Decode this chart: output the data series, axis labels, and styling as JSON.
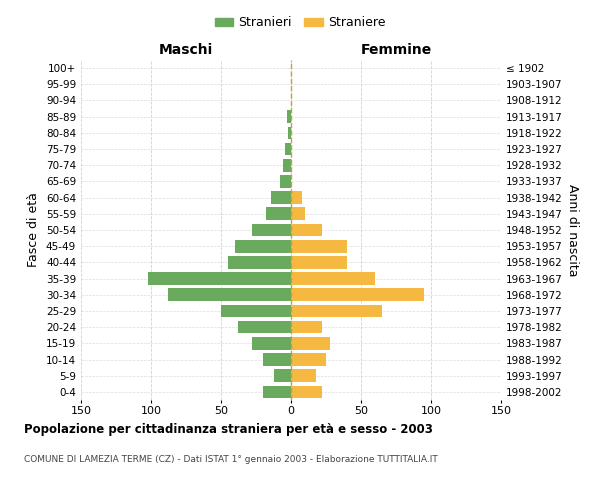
{
  "age_groups": [
    "0-4",
    "5-9",
    "10-14",
    "15-19",
    "20-24",
    "25-29",
    "30-34",
    "35-39",
    "40-44",
    "45-49",
    "50-54",
    "55-59",
    "60-64",
    "65-69",
    "70-74",
    "75-79",
    "80-84",
    "85-89",
    "90-94",
    "95-99",
    "100+"
  ],
  "birth_years": [
    "1998-2002",
    "1993-1997",
    "1988-1992",
    "1983-1987",
    "1978-1982",
    "1973-1977",
    "1968-1972",
    "1963-1967",
    "1958-1962",
    "1953-1957",
    "1948-1952",
    "1943-1947",
    "1938-1942",
    "1933-1937",
    "1928-1932",
    "1923-1927",
    "1918-1922",
    "1913-1917",
    "1908-1912",
    "1903-1907",
    "≤ 1902"
  ],
  "maschi": [
    20,
    12,
    20,
    28,
    38,
    50,
    88,
    102,
    45,
    40,
    28,
    18,
    14,
    8,
    6,
    4,
    2,
    3,
    0,
    0,
    0
  ],
  "femmine": [
    22,
    18,
    25,
    28,
    22,
    65,
    95,
    60,
    40,
    40,
    22,
    10,
    8,
    0,
    0,
    0,
    0,
    0,
    0,
    0,
    0
  ],
  "color_maschi": "#6aaa5e",
  "color_femmine": "#f5b942",
  "color_center_line": "#b8a830",
  "title": "Popolazione per cittadinanza straniera per età e sesso - 2003",
  "subtitle": "COMUNE DI LAMEZIA TERME (CZ) - Dati ISTAT 1° gennaio 2003 - Elaborazione TUTTITALIA.IT",
  "xlabel_maschi": "Maschi",
  "xlabel_femmine": "Femmine",
  "ylabel_left": "Fasce di età",
  "ylabel_right": "Anni di nascita",
  "xlim": 150,
  "legend_stranieri": "Stranieri",
  "legend_straniere": "Straniere",
  "background_color": "#ffffff",
  "grid_color": "#cccccc"
}
